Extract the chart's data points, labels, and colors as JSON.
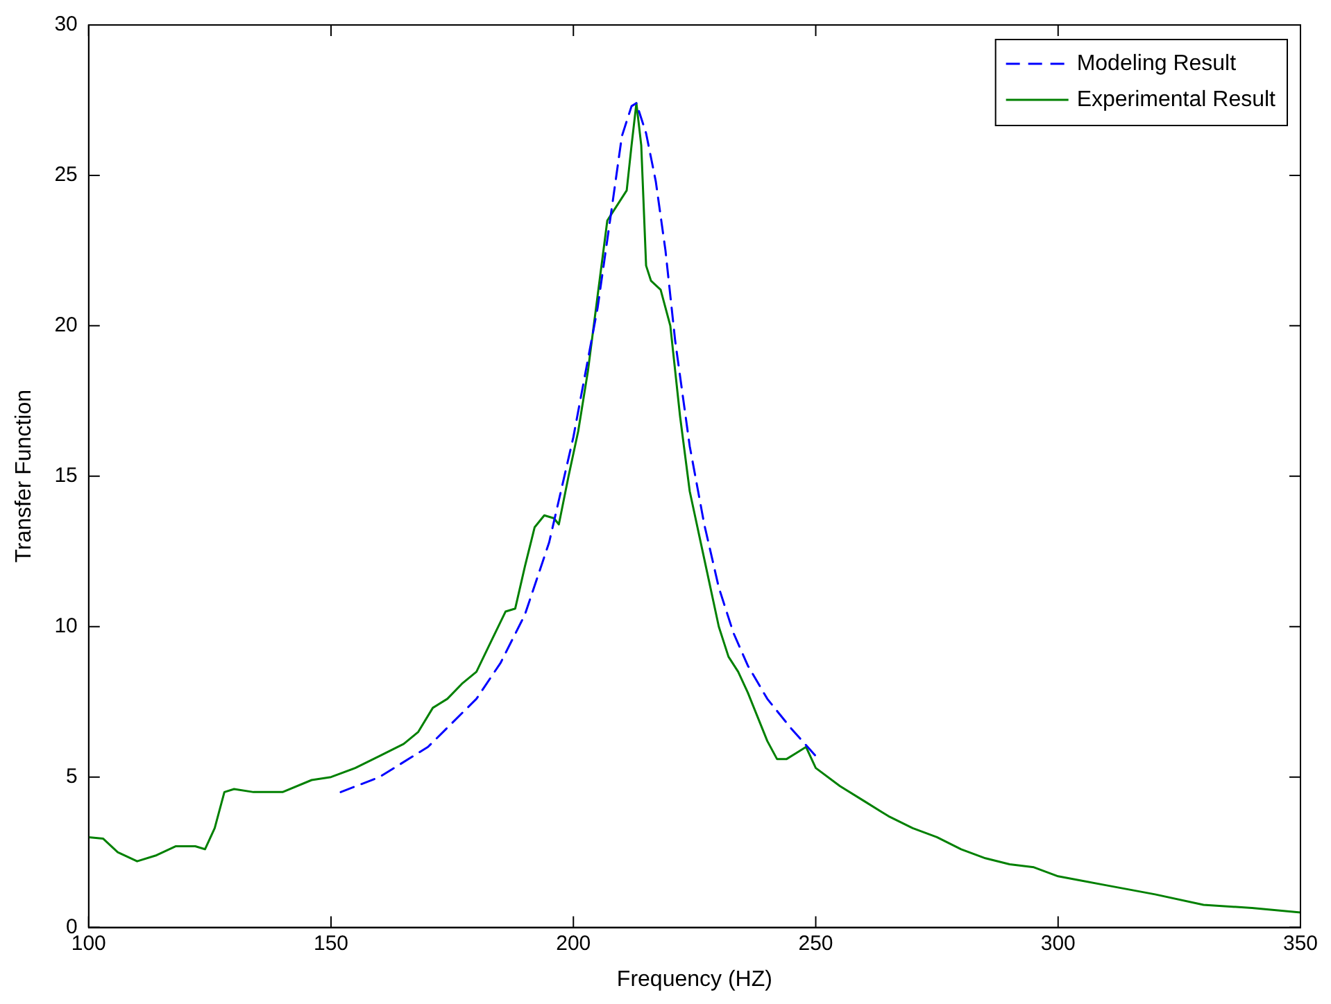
{
  "chart_data": {
    "type": "line",
    "xlabel": "Frequency (HZ)",
    "ylabel": "Transfer Function",
    "xlim": [
      100,
      350
    ],
    "ylim": [
      0,
      30
    ],
    "xticks": [
      100,
      150,
      200,
      250,
      300,
      350
    ],
    "yticks": [
      0,
      5,
      10,
      15,
      20,
      25,
      30
    ],
    "grid": false,
    "legend": "top right",
    "marker": "none",
    "series": [
      {
        "name": "Modeling Result",
        "color": "#0000ff",
        "line_style": "dashed",
        "x": [
          152,
          160,
          170,
          180,
          185,
          190,
          195,
          200,
          205,
          208,
          210,
          212,
          213,
          215,
          217,
          219,
          221,
          224,
          227,
          230,
          233,
          236,
          240,
          245,
          250
        ],
        "values": [
          4.5,
          5.0,
          6.0,
          7.6,
          8.8,
          10.4,
          12.8,
          16.3,
          20.6,
          24,
          26.3,
          27.3,
          27.4,
          26.4,
          24.8,
          22.5,
          19.5,
          16,
          13.4,
          11.3,
          9.8,
          8.7,
          7.6,
          6.6,
          5.7
        ]
      },
      {
        "name": "Experimental Result",
        "color": "#008000",
        "line_style": "solid",
        "x": [
          100,
          103,
          106,
          110,
          114,
          118,
          122,
          124,
          126,
          128,
          130,
          134,
          140,
          146,
          150,
          155,
          160,
          165,
          168,
          171,
          174,
          177,
          180,
          183,
          186,
          188,
          190,
          192,
          194,
          196,
          197,
          199,
          201,
          203,
          205,
          207,
          209,
          211,
          212,
          213,
          214,
          215,
          216,
          218,
          220,
          222,
          224,
          226,
          228,
          230,
          232,
          234,
          236,
          238,
          240,
          242,
          244,
          246,
          248,
          250,
          255,
          260,
          265,
          270,
          275,
          280,
          285,
          290,
          295,
          300,
          310,
          320,
          330,
          340,
          350
        ],
        "values": [
          3.0,
          2.95,
          2.5,
          2.2,
          2.4,
          2.7,
          2.7,
          2.6,
          3.3,
          4.5,
          4.6,
          4.5,
          4.5,
          4.9,
          5.0,
          5.3,
          5.7,
          6.1,
          6.5,
          7.3,
          7.6,
          8.1,
          8.5,
          9.5,
          10.5,
          10.6,
          12.0,
          13.3,
          13.7,
          13.6,
          13.4,
          15,
          16.5,
          18.5,
          21,
          23.5,
          24,
          24.5,
          26,
          27.4,
          26,
          22,
          21.5,
          21.2,
          20,
          17,
          14.5,
          13,
          11.5,
          10,
          9,
          8.5,
          7.8,
          7,
          6.2,
          5.6,
          5.6,
          5.8,
          6.0,
          5.3,
          4.7,
          4.2,
          3.7,
          3.3,
          3.0,
          2.6,
          2.3,
          2.1,
          2.0,
          1.7,
          1.4,
          1.1,
          0.75,
          0.65,
          0.5
        ]
      }
    ]
  }
}
